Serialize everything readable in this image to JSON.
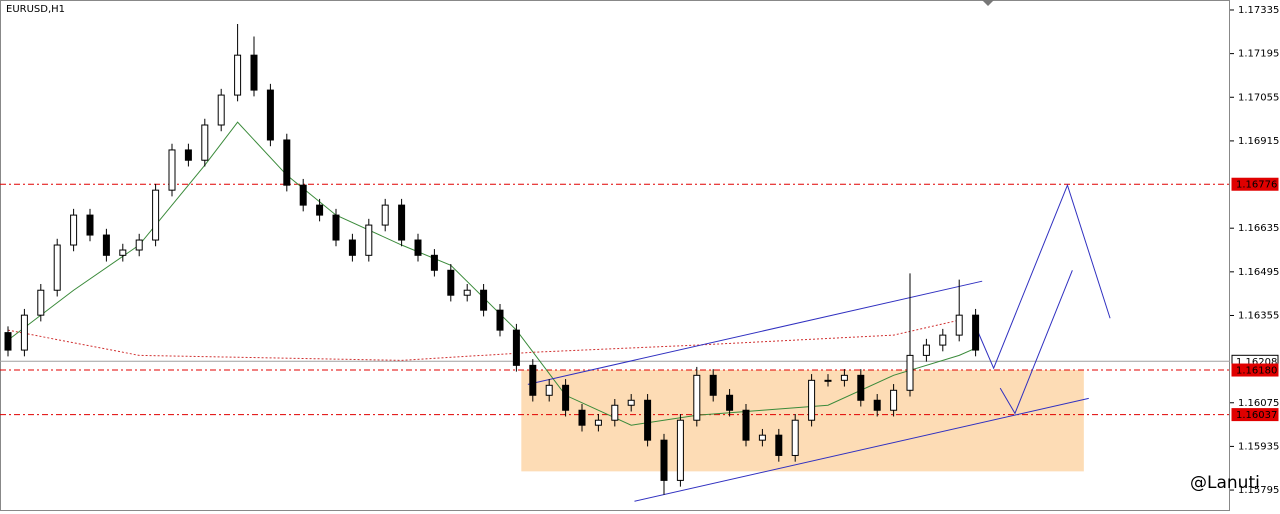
{
  "chart_data": {
    "type": "candlestick",
    "title": "EURUSD,H1",
    "watermark": "@Lanuti",
    "ylim": [
      1.15731,
      1.17367
    ],
    "yticks": [
      1.17335,
      1.17195,
      1.17055,
      1.16915,
      1.16635,
      1.16495,
      1.16355,
      1.16075,
      1.15935,
      1.15795
    ],
    "up_color": "#ffffff",
    "down_color": "#000000",
    "open": [
      1.163,
      1.16244,
      1.16356,
      1.16436,
      1.16581,
      1.16677,
      1.16613,
      1.16548,
      1.16565,
      1.16597,
      1.16757,
      1.16886,
      1.16853,
      1.16966,
      1.17062,
      1.1719,
      1.17078,
      1.16918,
      1.16773,
      1.16709,
      1.16677,
      1.16597,
      1.16548,
      1.16645,
      1.16709,
      1.16597,
      1.16548,
      1.165,
      1.1642,
      1.16436,
      1.16372,
      1.16308,
      1.16195,
      1.16099,
      1.16131,
      1.16051,
      1.16003,
      1.16019,
      1.16067,
      1.16083,
      1.15955,
      1.15826,
      1.16019,
      1.16163,
      1.16099,
      1.16051,
      1.15955,
      1.15971,
      1.15906,
      1.16019,
      1.16147,
      1.16147,
      1.16163,
      1.16083,
      1.16051,
      1.16115,
      1.16227,
      1.1626,
      1.16292,
      1.16356
    ],
    "high": [
      1.1632,
      1.16376,
      1.16456,
      1.16601,
      1.16697,
      1.16697,
      1.16633,
      1.16585,
      1.16617,
      1.16777,
      1.16906,
      1.16906,
      1.16986,
      1.17082,
      1.1729,
      1.1725,
      1.17098,
      1.16938,
      1.16793,
      1.16729,
      1.16697,
      1.16617,
      1.16665,
      1.16729,
      1.16729,
      1.16617,
      1.16568,
      1.1652,
      1.16456,
      1.16456,
      1.16392,
      1.16328,
      1.16215,
      1.16151,
      1.16151,
      1.16071,
      1.16039,
      1.16087,
      1.16103,
      1.16103,
      1.15975,
      1.16039,
      1.1619,
      1.16183,
      1.16119,
      1.16071,
      1.15991,
      1.15991,
      1.16039,
      1.16167,
      1.16167,
      1.16183,
      1.16183,
      1.16103,
      1.16135,
      1.1649,
      1.1628,
      1.16312,
      1.1647,
      1.16376
    ],
    "low": [
      1.16224,
      1.16224,
      1.16336,
      1.16416,
      1.16561,
      1.16593,
      1.16528,
      1.16528,
      1.16545,
      1.16577,
      1.16737,
      1.16833,
      1.16833,
      1.16946,
      1.17042,
      1.17058,
      1.16898,
      1.16753,
      1.16689,
      1.16657,
      1.16577,
      1.16528,
      1.16528,
      1.16625,
      1.16577,
      1.16528,
      1.1648,
      1.164,
      1.164,
      1.16352,
      1.16288,
      1.16175,
      1.16079,
      1.16079,
      1.16031,
      1.15983,
      1.15983,
      1.15999,
      1.16047,
      1.15935,
      1.1578,
      1.15806,
      1.15999,
      1.16079,
      1.16031,
      1.15935,
      1.15935,
      1.15886,
      1.15886,
      1.15999,
      1.16127,
      1.16127,
      1.16063,
      1.16031,
      1.16031,
      1.16095,
      1.16207,
      1.1624,
      1.16272,
      1.16224
    ],
    "close": [
      1.16244,
      1.16356,
      1.16436,
      1.16581,
      1.16677,
      1.16613,
      1.16548,
      1.16565,
      1.16597,
      1.16757,
      1.16886,
      1.16853,
      1.16966,
      1.17062,
      1.1719,
      1.17078,
      1.16918,
      1.16773,
      1.16709,
      1.16677,
      1.16597,
      1.16548,
      1.16645,
      1.16709,
      1.16597,
      1.16548,
      1.165,
      1.1642,
      1.16436,
      1.16372,
      1.16308,
      1.16195,
      1.16099,
      1.16131,
      1.16051,
      1.16003,
      1.16019,
      1.16067,
      1.16083,
      1.15955,
      1.15826,
      1.16019,
      1.16163,
      1.16099,
      1.16051,
      1.15955,
      1.15971,
      1.15906,
      1.16019,
      1.16147,
      1.16147,
      1.16163,
      1.16083,
      1.16051,
      1.16115,
      1.16227,
      1.1626,
      1.16292,
      1.16356,
      1.16244
    ],
    "box": {
      "x": [
        31.3,
        65.6
      ],
      "y": [
        1.15855,
        1.1618
      ],
      "color": "#fddcb5"
    },
    "levels": [
      {
        "price": 1.16776,
        "color": "#e00000",
        "style": "dash-dot"
      },
      {
        "price": 1.16208,
        "color": "#a0a0a0",
        "style": "solid"
      },
      {
        "price": {
          "value": 1.1618,
          "label": "1.16180"
        },
        "color": "#e00000",
        "style": "dash-dot"
      },
      {
        "price": 1.16037,
        "color": "#e00000",
        "style": "dash-dot"
      }
    ],
    "lines": [
      {
        "color": "#3a8a3a",
        "dash": false,
        "x": [
          0,
          4,
          8,
          12,
          14,
          17,
          20,
          24,
          27,
          31,
          34,
          38,
          42,
          46,
          50,
          54,
          58,
          59
        ],
        "y": [
          1.16276,
          1.16436,
          1.16581,
          1.16837,
          1.16975,
          1.16805,
          1.16677,
          1.16581,
          1.16516,
          1.16308,
          1.16099,
          1.16003,
          1.16035,
          1.16051,
          1.16067,
          1.16163,
          1.16227,
          1.1625
        ]
      },
      {
        "color": "#d03030",
        "dash": true,
        "x": [
          0,
          8,
          24,
          32,
          42,
          54,
          58
        ],
        "y": [
          1.16308,
          1.16227,
          1.16211,
          1.16237,
          1.1626,
          1.16292,
          1.1634
        ]
      },
      {
        "color": "#3030c0",
        "dash": false,
        "x": [
          31.7,
          59.4
        ],
        "y": [
          1.16134,
          1.16465
        ]
      },
      {
        "color": "#3030c0",
        "dash": false,
        "x": [
          38.2,
          65.9
        ],
        "y": [
          1.15759,
          1.16089
        ]
      },
      {
        "color": "#3030c0",
        "dash": false,
        "x": [
          59.1,
          60.1,
          64.6,
          67.2
        ],
        "y": [
          1.16308,
          1.16186,
          1.16773,
          1.16346
        ]
      },
      {
        "color": "#3030c0",
        "dash": false,
        "x": [
          60.5,
          61.4,
          64.9
        ],
        "y": [
          1.16122,
          1.16041,
          1.165
        ]
      }
    ]
  }
}
